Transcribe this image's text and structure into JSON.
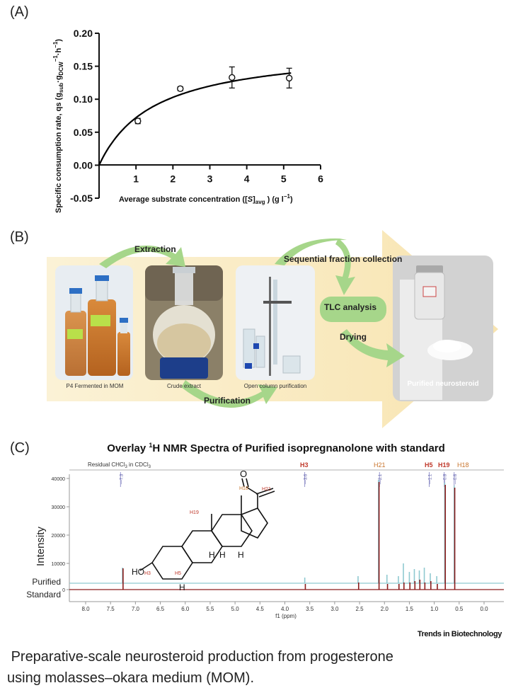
{
  "panelA": {
    "label": "(A)",
    "ylabel_main": "Specific consumption rate, qs (g",
    "ylabel_sub1": "sub",
    "ylabel_mid": "·g",
    "ylabel_sub2": "DCW",
    "ylabel_sup": "−1",
    "ylabel_tail": "·h",
    "ylabel_sup2": "−1",
    "ylabel_end": ")",
    "xlabel_pre": "Average substrate concentration ([",
    "xlabel_S": "S",
    "xlabel_mid": "]",
    "xlabel_sub": "avg",
    "xlabel_post": " ) (g l",
    "xlabel_sup": "−1",
    "xlabel_end": ")",
    "x_ticks": [
      "1",
      "2",
      "3",
      "4",
      "5",
      "6"
    ],
    "y_ticks": [
      "0.20",
      "0.15",
      "0.10",
      "0.05",
      "0.00",
      "-0.05"
    ]
  },
  "chart_data": {
    "type": "scatter",
    "xlim": [
      0,
      6
    ],
    "ylim": [
      -0.05,
      0.2
    ],
    "points": [
      {
        "x": 1.05,
        "y": 0.067,
        "err": 0.004
      },
      {
        "x": 2.2,
        "y": 0.116,
        "err": 0.003
      },
      {
        "x": 3.6,
        "y": 0.133,
        "err": 0.016
      },
      {
        "x": 5.15,
        "y": 0.132,
        "err": 0.015
      }
    ],
    "fit": {
      "model": "Monod",
      "qmax": 0.18,
      "Ks": 1.5
    }
  },
  "panelB": {
    "label": "(B)",
    "steps": {
      "extraction": "Extraction",
      "sequential": "Sequential fraction collection",
      "tlc": "TLC analysis",
      "drying": "Drying",
      "purification": "Purification"
    },
    "photos": {
      "fermented": "P4 Fermented in MOM",
      "crude": "Crude extract",
      "column": "Open column purification",
      "purified": "Purified neurosteroid"
    }
  },
  "panelC": {
    "label": "(C)",
    "title_pre": "Overlay ",
    "title_sup": "1",
    "title_post": "H NMR Spectra of Purified isopregnanolone with standard",
    "residual": "Residual CHCl",
    "residual_sub1": "3",
    "residual_mid": " in CDCl",
    "residual_sub2": "3",
    "peak_labels": [
      "H3",
      "H21",
      "H5",
      "H19",
      "H18"
    ],
    "peak_values": [
      "7.3",
      "3.6",
      "2.1",
      "1.1",
      "0.8",
      "0.6"
    ],
    "ylabel": "Intensity",
    "y_ticks": [
      "40000",
      "30000",
      "20000",
      "10000",
      "0"
    ],
    "trace_purified": "Purified",
    "trace_standard": "Standard",
    "x_ticks": [
      "8.0",
      "7.5",
      "7.0",
      "6.5",
      "6.0",
      "5.5",
      "5.0",
      "4.5",
      "4.0",
      "3.5",
      "3.0",
      "2.5",
      "2.0",
      "1.5",
      "1.0",
      "0.5",
      "0.0"
    ],
    "xlabel": "f1 (ppm)",
    "mol_labels": {
      "oh": "HO",
      "h": "H"
    },
    "mol_h_labels": [
      "H21",
      "H19",
      "H3",
      "H5"
    ],
    "colors": {
      "purified": "#8fc9d0",
      "standard": "#8a1c1c",
      "peak_red": "#c0392b",
      "peak_orange": "#c8742c"
    }
  },
  "publisher": {
    "mark": "Trends in Biotechnology"
  },
  "caption": {
    "line1": "Preparative-scale neurosteroid production from progesterone",
    "line2": "using molasses–okara medium (MOM)."
  }
}
